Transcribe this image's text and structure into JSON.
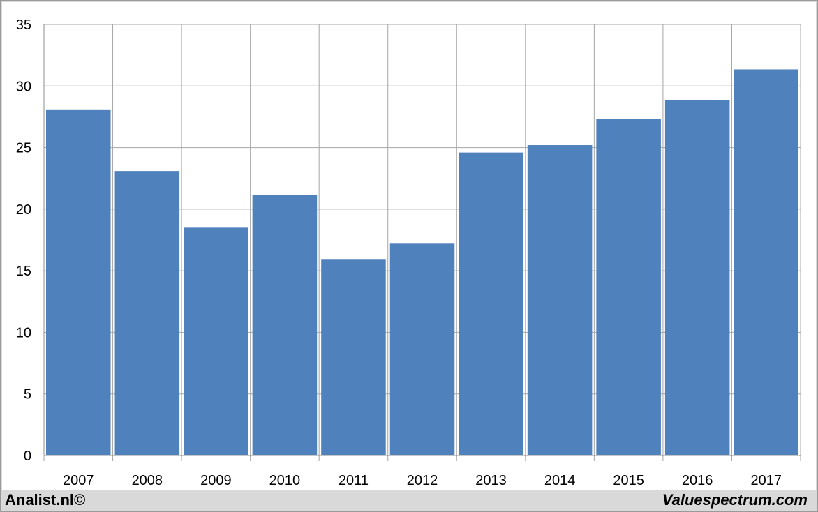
{
  "chart_data": {
    "type": "bar",
    "title": "",
    "xlabel": "",
    "ylabel": "",
    "categories": [
      "2007",
      "2008",
      "2009",
      "2010",
      "2011",
      "2012",
      "2013",
      "2014",
      "2015",
      "2016",
      "2017"
    ],
    "values": [
      28.1,
      23.1,
      18.5,
      21.15,
      15.9,
      17.2,
      24.6,
      25.2,
      27.35,
      28.85,
      31.35
    ],
    "ylim": [
      0,
      35
    ],
    "yticks": [
      0,
      5,
      10,
      15,
      20,
      25,
      30,
      35
    ],
    "grid": true,
    "legend": "none",
    "bar_color": "#4f81bd",
    "grid_color": "#a6a6a6"
  },
  "footer": {
    "left_text": "Analist.nl©",
    "right_text": "Valuespectrum.com"
  }
}
